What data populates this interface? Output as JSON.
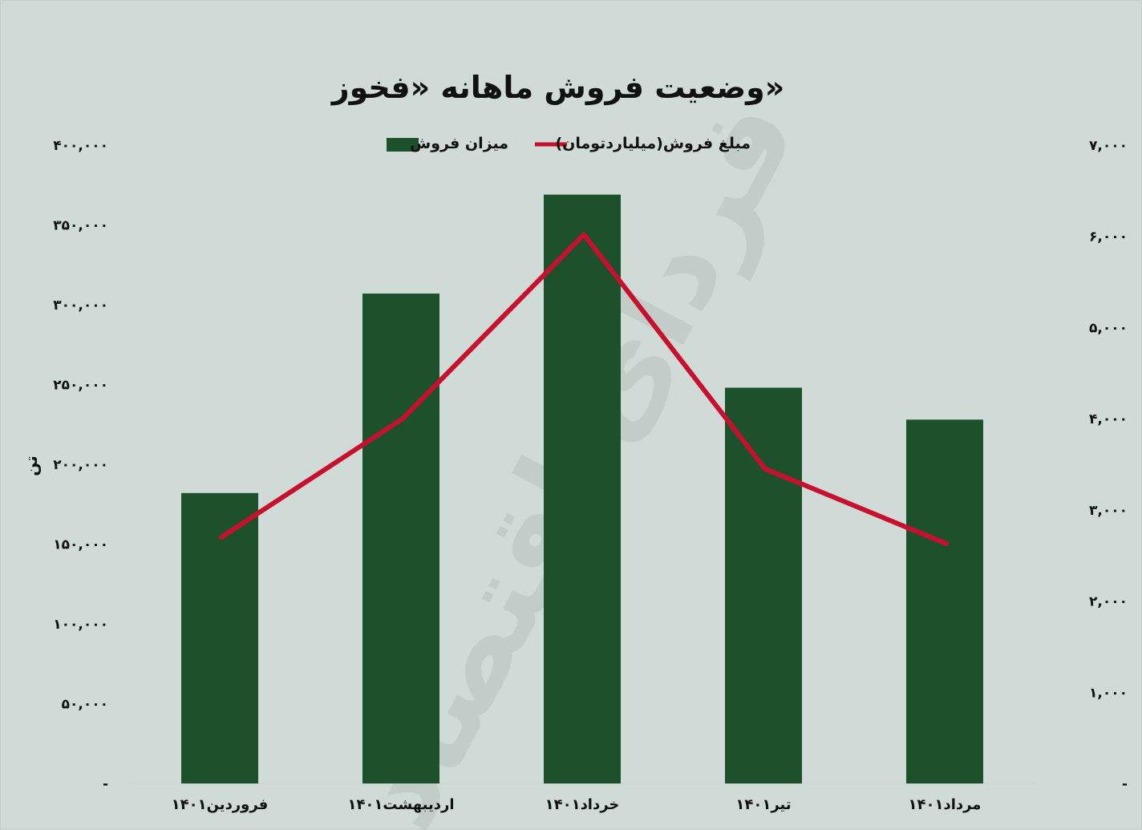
{
  "chart_data": {
    "type": "bar",
    "title": "وضعیت فروش ماهانه «فخوز»",
    "categories": [
      "فروردین۱۴۰۱",
      "اردیبهشت۱۴۰۱",
      "خرداد۱۴۰۱",
      "تیر۱۴۰۱",
      "مرداد۱۴۰۱"
    ],
    "series": [
      {
        "name": "میزان فروش",
        "type": "bar",
        "axis": "left",
        "color": "#1c512c",
        "values": [
          182000,
          307000,
          369000,
          248000,
          228000
        ]
      },
      {
        "name": "مبلغ فروش(میلیاردتومان)",
        "type": "line",
        "axis": "right",
        "color": "#c8102e",
        "values": [
          2700,
          4000,
          6020,
          3450,
          2630
        ]
      }
    ],
    "y_left": {
      "label": "تن",
      "ylim": [
        0,
        400000
      ],
      "ticks": [
        0,
        50000,
        100000,
        150000,
        200000,
        250000,
        300000,
        350000,
        400000
      ],
      "tick_labels": [
        "-",
        "۵۰,۰۰۰",
        "۱۰۰,۰۰۰",
        "۱۵۰,۰۰۰",
        "۲۰۰,۰۰۰",
        "۲۵۰,۰۰۰",
        "۳۰۰,۰۰۰",
        "۳۵۰,۰۰۰",
        "۴۰۰,۰۰۰"
      ]
    },
    "y_right": {
      "ylim": [
        0,
        7000
      ],
      "ticks": [
        0,
        1000,
        2000,
        3000,
        4000,
        5000,
        6000,
        7000
      ],
      "tick_labels": [
        "-",
        "۱,۰۰۰",
        "۲,۰۰۰",
        "۳,۰۰۰",
        "۴,۰۰۰",
        "۵,۰۰۰",
        "۶,۰۰۰",
        "۷,۰۰۰"
      ]
    },
    "grid": false,
    "legend": "top-center",
    "watermark": "فردای اقتصاد"
  }
}
